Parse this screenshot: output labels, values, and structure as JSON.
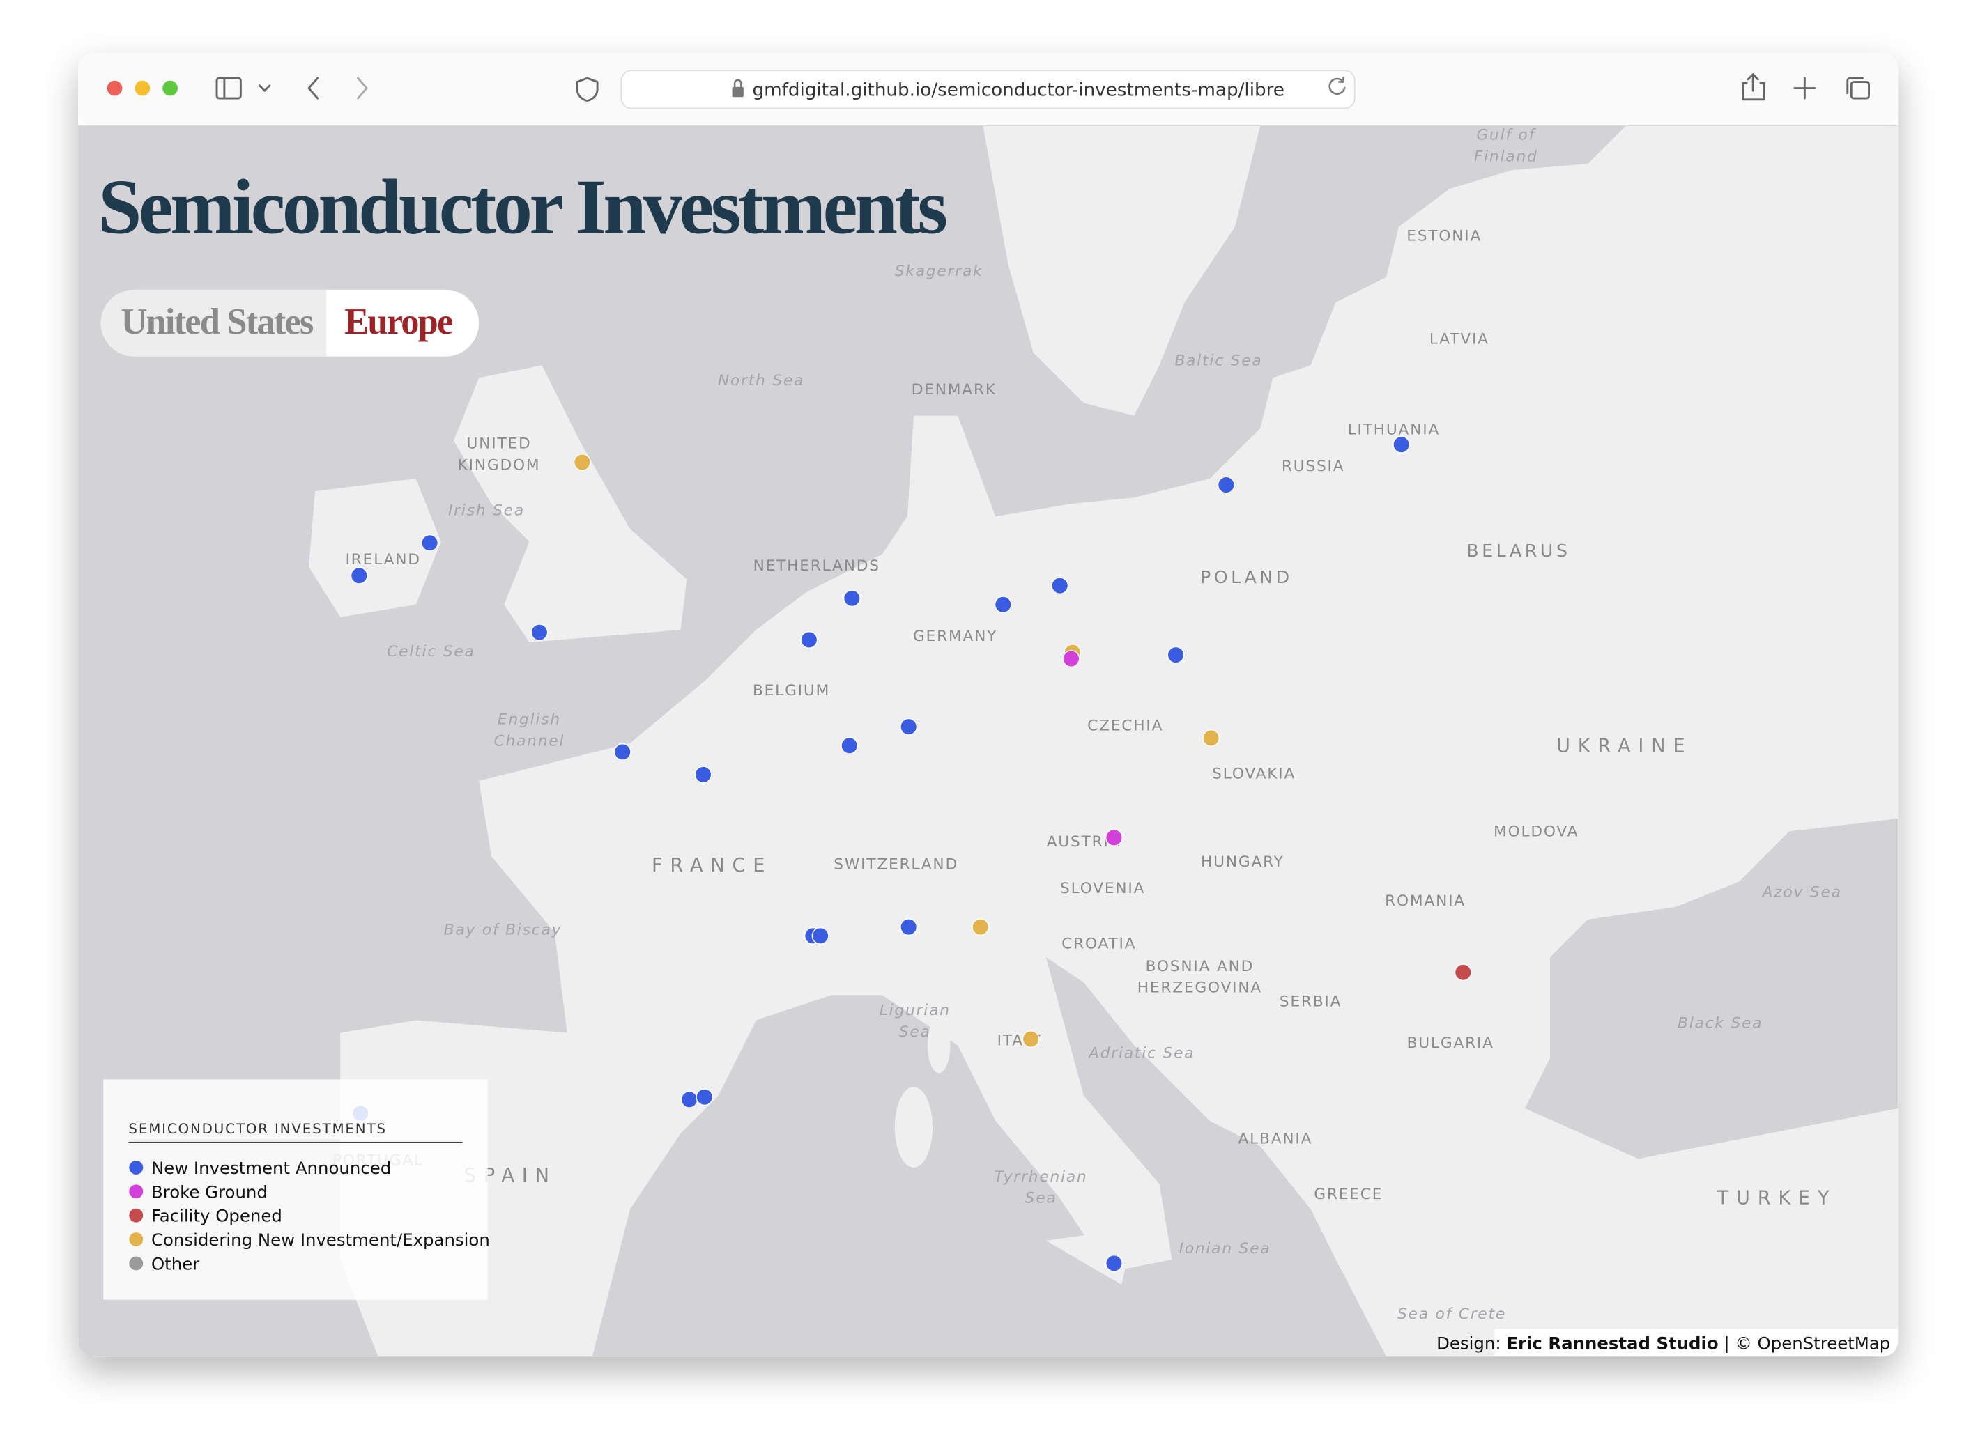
{
  "browser": {
    "url": "gmfdigital.github.io/semiconductor-investments-map/libre"
  },
  "header": {
    "title": "Semiconductor Investments"
  },
  "tabs": [
    "United States",
    "Europe"
  ],
  "map": {
    "labels": [
      {
        "lines": [
          "UNITED",
          "KINGDOM"
        ]
      },
      {
        "lines": [
          "IRELAND"
        ]
      },
      {
        "lines": [
          "NETHERLANDS"
        ]
      },
      {
        "lines": [
          "DENMARK"
        ]
      },
      {
        "lines": [
          "GERMANY"
        ]
      },
      {
        "lines": [
          "BELGIUM"
        ]
      },
      {
        "lines": [
          "FRANCE"
        ]
      },
      {
        "lines": [
          "SWITZERLAND"
        ]
      },
      {
        "lines": [
          "AUSTRIA"
        ]
      },
      {
        "lines": [
          "CZECHIA"
        ]
      },
      {
        "lines": [
          "POLAND"
        ]
      },
      {
        "lines": [
          "SLOVAKIA"
        ]
      },
      {
        "lines": [
          "HUNGARY"
        ]
      },
      {
        "lines": [
          "SLOVENIA"
        ]
      },
      {
        "lines": [
          "CROATIA"
        ]
      },
      {
        "lines": [
          "BOSNIA AND",
          "HERZEGOVINA"
        ]
      },
      {
        "lines": [
          "SERBIA"
        ]
      },
      {
        "lines": [
          "ROMANIA"
        ]
      },
      {
        "lines": [
          "BULGARIA"
        ]
      },
      {
        "lines": [
          "MOLDOVA"
        ]
      },
      {
        "lines": [
          "UKRAINE"
        ]
      },
      {
        "lines": [
          "BELARUS"
        ]
      },
      {
        "lines": [
          "LITHUANIA"
        ]
      },
      {
        "lines": [
          "LATVIA"
        ]
      },
      {
        "lines": [
          "ESTONIA"
        ]
      },
      {
        "lines": [
          "RUSSIA"
        ]
      },
      {
        "lines": [
          "ITALY"
        ]
      },
      {
        "lines": [
          "ALBANIA"
        ]
      },
      {
        "lines": [
          "GREECE"
        ]
      },
      {
        "lines": [
          "TURKEY"
        ]
      },
      {
        "lines": [
          "SPAIN"
        ]
      },
      {
        "lines": [
          "PORTUGAL"
        ]
      },
      {
        "lines": [
          "North Sea"
        ]
      },
      {
        "lines": [
          "Skagerrak"
        ]
      },
      {
        "lines": [
          "Baltic Sea"
        ]
      },
      {
        "lines": [
          "Gulf of",
          "Finland"
        ]
      },
      {
        "lines": [
          "Irish Sea"
        ]
      },
      {
        "lines": [
          "Celtic Sea"
        ]
      },
      {
        "lines": [
          "English",
          "Channel"
        ]
      },
      {
        "lines": [
          "Bay of Biscay"
        ]
      },
      {
        "lines": [
          "Ligurian",
          "Sea"
        ]
      },
      {
        "lines": [
          "Adriatic Sea"
        ]
      },
      {
        "lines": [
          "Tyrrhenian",
          "Sea"
        ]
      },
      {
        "lines": [
          "Ionian Sea"
        ]
      },
      {
        "lines": [
          "Sea of Crete"
        ]
      },
      {
        "lines": [
          "Black Sea"
        ]
      },
      {
        "lines": [
          "Azov Sea"
        ]
      }
    ]
  },
  "legend": {
    "title": "SEMICONDUCTOR INVESTMENTS",
    "items": [
      {
        "name": "New Investment Announced",
        "color": "#3a5ce0"
      },
      {
        "name": "Broke Ground",
        "color": "#d33fd9"
      },
      {
        "name": "Facility Opened",
        "color": "#c44b4b"
      },
      {
        "name": "Considering New Investment/Expansion",
        "color": "#e2b24d"
      },
      {
        "name": "Other",
        "color": "#9a9a9a"
      }
    ]
  },
  "attribution": {
    "prefix": "Design:",
    "name": "Eric Rannestad Studio",
    "rest": "| © OpenStreetMap"
  }
}
